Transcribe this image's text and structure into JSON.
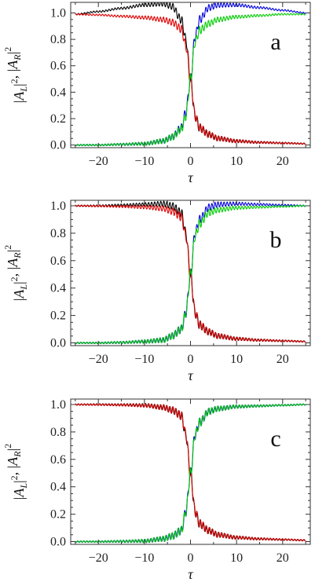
{
  "chart_data": [
    {
      "type": "line",
      "panel_label": "a",
      "xlabel": "τ",
      "ylabel": "|A_L|^2 , |A_R|^2",
      "xlim": [
        -26,
        26
      ],
      "ylim": [
        -0.02,
        1.08
      ],
      "xticks": [
        -20,
        -10,
        0,
        10,
        20
      ],
      "yticks": [
        0.0,
        0.2,
        0.4,
        0.6,
        0.8,
        1.0
      ],
      "tick_labels_x": [
        "−20",
        "−10",
        "0",
        "10",
        "20"
      ],
      "tick_labels_y": [
        "0.0",
        "0.2",
        "0.4",
        "0.6",
        "0.8",
        "1.0"
      ],
      "legend": "none",
      "grid": false,
      "series": [
        {
          "color": "#000000",
          "x": [
            -25,
            -20,
            -15,
            -10,
            -6,
            -4,
            -2,
            -1,
            0,
            1,
            2,
            4,
            6,
            10,
            15,
            20,
            25
          ],
          "y": [
            0.99,
            1.01,
            1.035,
            1.06,
            1.07,
            1.05,
            0.95,
            0.8,
            0.5,
            0.22,
            0.13,
            0.08,
            0.05,
            0.03,
            0.02,
            0.015,
            0.01
          ]
        },
        {
          "color": "#e00000",
          "x": [
            -25,
            -20,
            -15,
            -10,
            -6,
            -4,
            -2,
            -1,
            0,
            1,
            2,
            4,
            6,
            10,
            15,
            20,
            25
          ],
          "y": [
            0.99,
            0.985,
            0.975,
            0.965,
            0.95,
            0.93,
            0.88,
            0.75,
            0.5,
            0.22,
            0.13,
            0.08,
            0.05,
            0.03,
            0.02,
            0.015,
            0.01
          ]
        },
        {
          "color": "#0000dd",
          "x": [
            -25,
            -20,
            -15,
            -10,
            -6,
            -4,
            -2,
            -1,
            0,
            1,
            2,
            4,
            6,
            10,
            15,
            20,
            25
          ],
          "y": [
            0.0,
            0.0,
            0.005,
            0.01,
            0.03,
            0.06,
            0.13,
            0.25,
            0.5,
            0.82,
            0.95,
            1.04,
            1.06,
            1.06,
            1.04,
            1.02,
            1.0
          ]
        },
        {
          "color": "#00cc00",
          "x": [
            -25,
            -20,
            -15,
            -10,
            -6,
            -4,
            -2,
            -1,
            0,
            1,
            2,
            4,
            6,
            10,
            15,
            20,
            25
          ],
          "y": [
            0.0,
            0.0,
            0.005,
            0.01,
            0.03,
            0.06,
            0.12,
            0.22,
            0.5,
            0.78,
            0.87,
            0.92,
            0.95,
            0.97,
            0.98,
            0.99,
            0.99
          ]
        }
      ]
    },
    {
      "type": "line",
      "panel_label": "b",
      "xlabel": "τ",
      "ylabel": "|A_L|^2 , |A_R|^2",
      "xlim": [
        -26,
        26
      ],
      "ylim": [
        -0.02,
        1.04
      ],
      "xticks": [
        -20,
        -10,
        0,
        10,
        20
      ],
      "yticks": [
        0.0,
        0.2,
        0.4,
        0.6,
        0.8,
        1.0
      ],
      "tick_labels_x": [
        "−20",
        "−10",
        "0",
        "10",
        "20"
      ],
      "tick_labels_y": [
        "0.0",
        "0.2",
        "0.4",
        "0.6",
        "0.8",
        "1.0"
      ],
      "legend": "none",
      "grid": false,
      "series": [
        {
          "color": "#000000",
          "x": [
            -25,
            -20,
            -15,
            -10,
            -6,
            -4,
            -2,
            -1,
            0,
            1,
            2,
            4,
            6,
            10,
            15,
            20,
            25
          ],
          "y": [
            1.0,
            1.0,
            1.005,
            1.01,
            1.015,
            1.0,
            0.95,
            0.8,
            0.5,
            0.22,
            0.13,
            0.08,
            0.05,
            0.03,
            0.02,
            0.015,
            0.01
          ]
        },
        {
          "color": "#e00000",
          "x": [
            -25,
            -20,
            -15,
            -10,
            -6,
            -4,
            -2,
            -1,
            0,
            1,
            2,
            4,
            6,
            10,
            15,
            20,
            25
          ],
          "y": [
            1.0,
            0.998,
            0.995,
            0.99,
            0.98,
            0.96,
            0.92,
            0.78,
            0.5,
            0.22,
            0.13,
            0.08,
            0.05,
            0.03,
            0.02,
            0.015,
            0.01
          ]
        },
        {
          "color": "#0000dd",
          "x": [
            -25,
            -20,
            -15,
            -10,
            -6,
            -4,
            -2,
            -1,
            0,
            1,
            2,
            4,
            6,
            10,
            15,
            20,
            25
          ],
          "y": [
            0.0,
            0.0,
            0.003,
            0.01,
            0.02,
            0.05,
            0.1,
            0.22,
            0.5,
            0.8,
            0.9,
            0.99,
            1.01,
            1.015,
            1.01,
            1.005,
            1.0
          ]
        },
        {
          "color": "#00cc00",
          "x": [
            -25,
            -20,
            -15,
            -10,
            -6,
            -4,
            -2,
            -1,
            0,
            1,
            2,
            4,
            6,
            10,
            15,
            20,
            25
          ],
          "y": [
            0.0,
            0.0,
            0.003,
            0.01,
            0.02,
            0.05,
            0.1,
            0.22,
            0.5,
            0.78,
            0.87,
            0.95,
            0.97,
            0.985,
            0.99,
            0.995,
            1.0
          ]
        }
      ]
    },
    {
      "type": "line",
      "panel_label": "c",
      "xlabel": "τ",
      "ylabel": "|A_L|^2 , |A_R|^2",
      "xlim": [
        -26,
        26
      ],
      "ylim": [
        -0.02,
        1.04
      ],
      "xticks": [
        -20,
        -10,
        0,
        10,
        20
      ],
      "yticks": [
        0.0,
        0.2,
        0.4,
        0.6,
        0.8,
        1.0
      ],
      "tick_labels_x": [
        "−20",
        "−10",
        "0",
        "10",
        "20"
      ],
      "tick_labels_y": [
        "0.0",
        "0.2",
        "0.4",
        "0.6",
        "0.8",
        "1.0"
      ],
      "legend": "none",
      "grid": false,
      "series": [
        {
          "color": "#000000",
          "x": [
            -25,
            -20,
            -15,
            -10,
            -6,
            -4,
            -2,
            -1,
            0,
            1,
            2,
            4,
            6,
            10,
            15,
            20,
            25
          ],
          "y": [
            1.0,
            1.0,
            0.998,
            0.995,
            0.98,
            0.96,
            0.92,
            0.78,
            0.5,
            0.22,
            0.13,
            0.08,
            0.05,
            0.03,
            0.02,
            0.015,
            0.01
          ]
        },
        {
          "color": "#e00000",
          "x": [
            -25,
            -20,
            -15,
            -10,
            -6,
            -4,
            -2,
            -1,
            0,
            1,
            2,
            4,
            6,
            10,
            15,
            20,
            25
          ],
          "y": [
            1.0,
            0.999,
            0.997,
            0.993,
            0.98,
            0.96,
            0.92,
            0.78,
            0.5,
            0.22,
            0.13,
            0.08,
            0.05,
            0.03,
            0.02,
            0.015,
            0.01
          ]
        },
        {
          "color": "#0000dd",
          "x": [
            -25,
            -20,
            -15,
            -10,
            -6,
            -4,
            -2,
            -1,
            0,
            1,
            2,
            4,
            6,
            10,
            15,
            20,
            25
          ],
          "y": [
            0.0,
            0.0,
            0.002,
            0.005,
            0.02,
            0.04,
            0.08,
            0.22,
            0.5,
            0.78,
            0.87,
            0.95,
            0.97,
            0.985,
            0.99,
            0.995,
            1.0
          ]
        },
        {
          "color": "#00cc00",
          "x": [
            -25,
            -20,
            -15,
            -10,
            -6,
            -4,
            -2,
            -1,
            0,
            1,
            2,
            4,
            6,
            10,
            15,
            20,
            25
          ],
          "y": [
            0.0,
            0.0,
            0.002,
            0.005,
            0.02,
            0.04,
            0.08,
            0.22,
            0.5,
            0.78,
            0.87,
            0.95,
            0.97,
            0.985,
            0.99,
            0.995,
            1.0
          ]
        }
      ]
    }
  ]
}
